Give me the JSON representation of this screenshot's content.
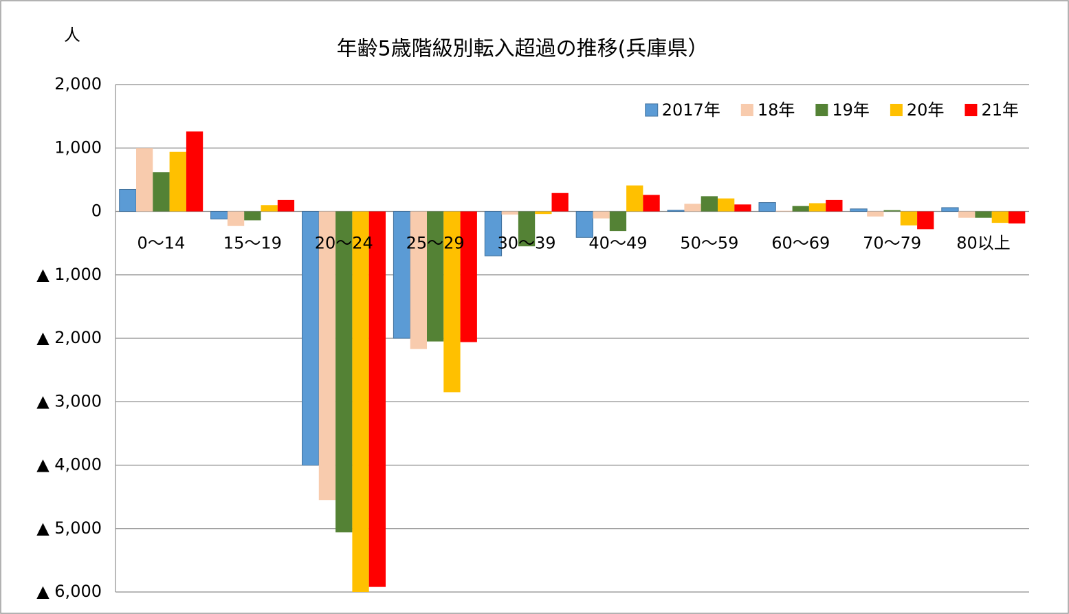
{
  "chart_data": {
    "type": "bar",
    "title": "年齢5歳階級別転入超過の推移(兵庫県）",
    "y_label": "人",
    "categories": [
      "0〜14",
      "15〜19",
      "20〜24",
      "25〜29",
      "30〜39",
      "40〜49",
      "50〜59",
      "60〜69",
      "70〜79",
      "80以上"
    ],
    "series": [
      {
        "name": "2017年",
        "color": "#5b9bd5",
        "values": [
          347,
          -120,
          -4000,
          -2000,
          -700,
          -410,
          20,
          140,
          40,
          60
        ]
      },
      {
        "name": "18年",
        "color": "#f8cbad",
        "values": [
          1000,
          -230,
          -4550,
          -2170,
          -50,
          -110,
          120,
          10,
          -80,
          -100
        ]
      },
      {
        "name": "19年",
        "color": "#548235",
        "values": [
          620,
          -140,
          -5060,
          -2050,
          -550,
          -310,
          240,
          85,
          20,
          -100
        ]
      },
      {
        "name": "20年",
        "color": "#ffc000",
        "values": [
          940,
          100,
          -6000,
          -2850,
          -40,
          410,
          205,
          130,
          -220,
          -180
        ]
      },
      {
        "name": "21年",
        "color": "#ff0000",
        "values": [
          1260,
          180,
          -5920,
          -2060,
          290,
          260,
          110,
          180,
          -280,
          -190
        ]
      }
    ],
    "ylim": [
      -6000,
      2000
    ],
    "yticks": [
      {
        "value": -6000,
        "label": "▲ 6,000"
      },
      {
        "value": -5000,
        "label": "▲ 5,000"
      },
      {
        "value": -4000,
        "label": "▲ 4,000"
      },
      {
        "value": -3000,
        "label": "▲ 3,000"
      },
      {
        "value": -2000,
        "label": "▲ 2,000"
      },
      {
        "value": -1000,
        "label": "▲ 1,000"
      },
      0,
      {
        "value": 1000,
        "label": "1,000"
      },
      {
        "value": 2000,
        "label": "2,000"
      }
    ],
    "grid": true,
    "legend": "top-right"
  }
}
